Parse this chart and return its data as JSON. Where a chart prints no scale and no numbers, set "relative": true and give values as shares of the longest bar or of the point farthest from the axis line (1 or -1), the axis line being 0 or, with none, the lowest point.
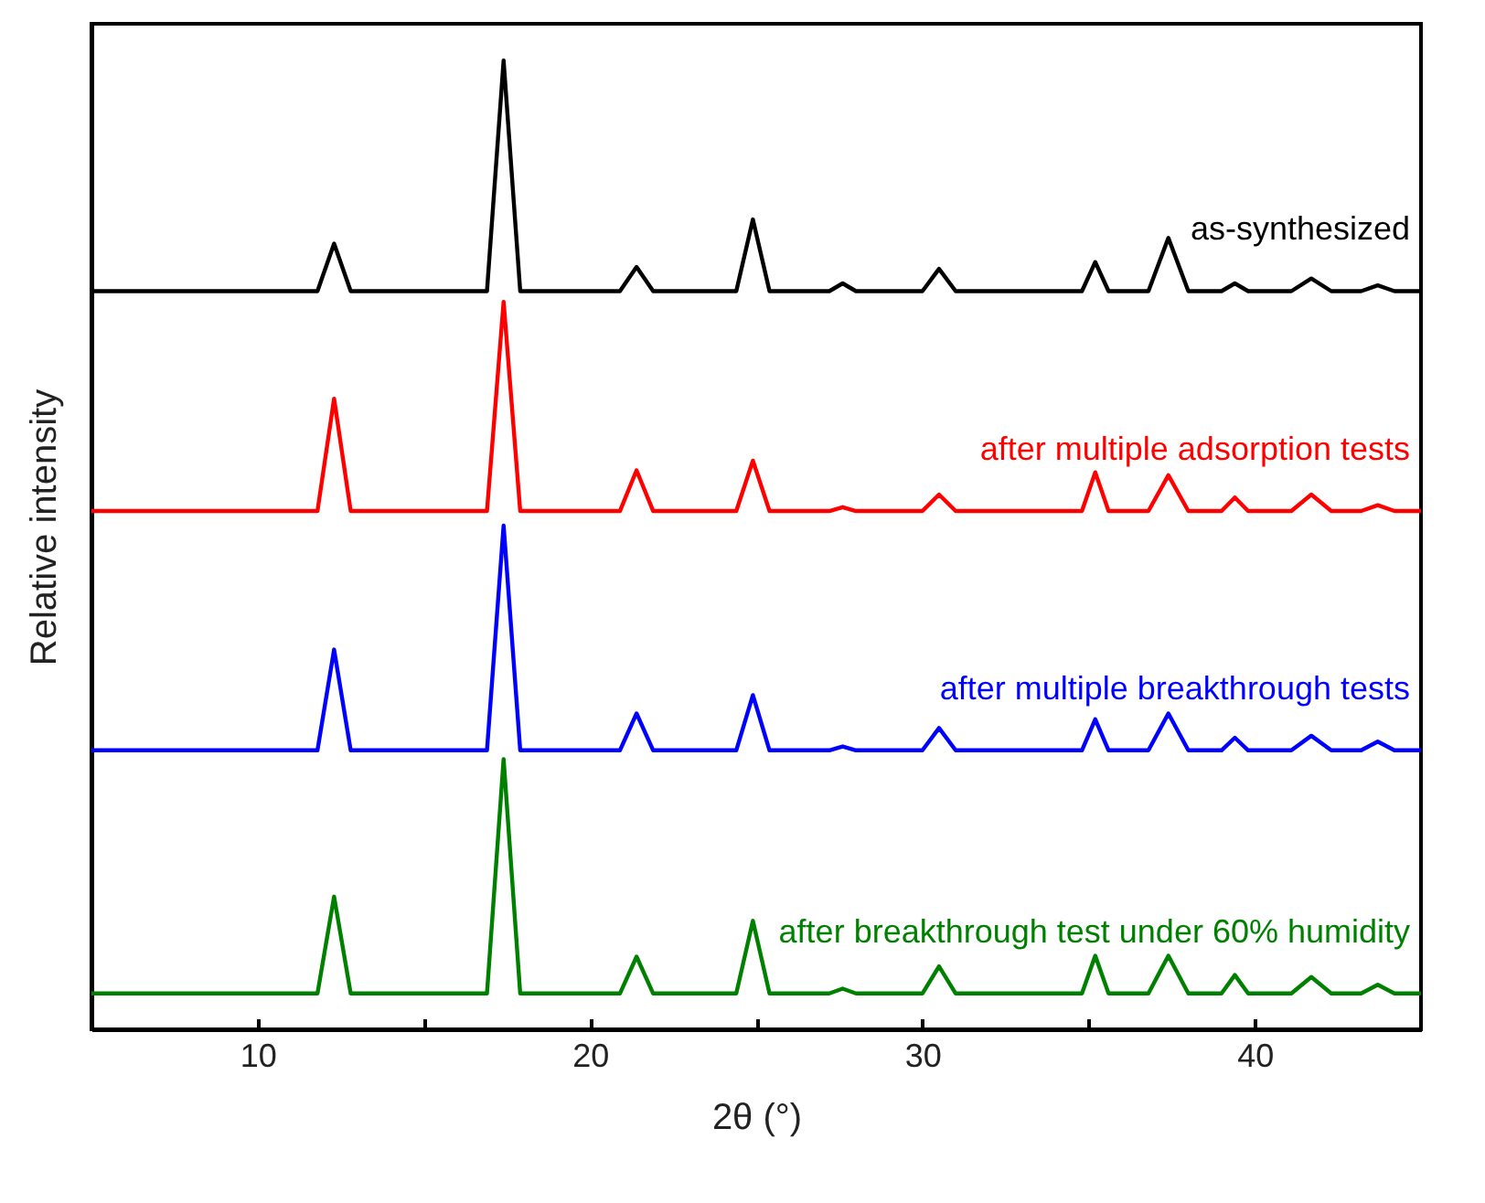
{
  "chart_data": {
    "type": "line",
    "relative": true,
    "xlabel": "2θ (°)",
    "ylabel": "Relative intensity",
    "xlim": [
      5,
      45
    ],
    "xticks": [
      10,
      {
        "value": 15,
        "label": null
      },
      20,
      {
        "value": 25,
        "label": null
      },
      30,
      {
        "value": 35,
        "label": null
      },
      40
    ],
    "legend": false,
    "grid": false,
    "x": [
      5,
      11.8,
      12.3,
      12.8,
      16.9,
      17.4,
      17.9,
      20.9,
      21.4,
      21.9,
      24.4,
      24.9,
      25.4,
      27.2,
      27.6,
      28.0,
      30.0,
      30.5,
      31.0,
      34.8,
      35.2,
      35.6,
      36.8,
      37.4,
      38.0,
      39.0,
      39.4,
      39.8,
      41.1,
      41.7,
      42.3,
      43.2,
      43.7,
      44.2,
      45
    ],
    "series": [
      {
        "name": "as-synthesized",
        "color": "#000000",
        "values": [
          0.762,
          0.762,
          0.811,
          0.762,
          0.762,
          1.0,
          0.762,
          0.762,
          0.787,
          0.762,
          0.762,
          0.836,
          0.762,
          0.762,
          0.77,
          0.762,
          0.762,
          0.785,
          0.762,
          0.762,
          0.792,
          0.762,
          0.762,
          0.817,
          0.762,
          0.762,
          0.77,
          0.762,
          0.762,
          0.775,
          0.762,
          0.762,
          0.768,
          0.762,
          0.762
        ]
      },
      {
        "name": "after multiple adsorption tests",
        "color": "#ff0000",
        "values": [
          0.535,
          0.535,
          0.651,
          0.535,
          0.535,
          0.751,
          0.535,
          0.535,
          0.577,
          0.535,
          0.535,
          0.587,
          0.535,
          0.535,
          0.539,
          0.535,
          0.535,
          0.552,
          0.535,
          0.535,
          0.575,
          0.535,
          0.535,
          0.572,
          0.535,
          0.535,
          0.549,
          0.535,
          0.535,
          0.552,
          0.535,
          0.535,
          0.541,
          0.535,
          0.535
        ]
      },
      {
        "name": "after multiple breakthrough tests",
        "color": "#0000ff",
        "values": [
          0.288,
          0.288,
          0.392,
          0.288,
          0.288,
          0.52,
          0.288,
          0.288,
          0.326,
          0.288,
          0.288,
          0.345,
          0.288,
          0.288,
          0.292,
          0.288,
          0.288,
          0.311,
          0.288,
          0.288,
          0.32,
          0.288,
          0.288,
          0.326,
          0.288,
          0.288,
          0.301,
          0.288,
          0.288,
          0.303,
          0.288,
          0.288,
          0.297,
          0.288,
          0.288
        ]
      },
      {
        "name": "after breakthrough test under 60% humidity",
        "color": "#008000",
        "values": [
          0.037,
          0.037,
          0.137,
          0.037,
          0.037,
          0.279,
          0.037,
          0.037,
          0.075,
          0.037,
          0.037,
          0.112,
          0.037,
          0.037,
          0.042,
          0.037,
          0.037,
          0.065,
          0.037,
          0.037,
          0.076,
          0.037,
          0.037,
          0.076,
          0.037,
          0.037,
          0.056,
          0.037,
          0.037,
          0.054,
          0.037,
          0.037,
          0.046,
          0.037,
          0.037
        ]
      }
    ]
  }
}
